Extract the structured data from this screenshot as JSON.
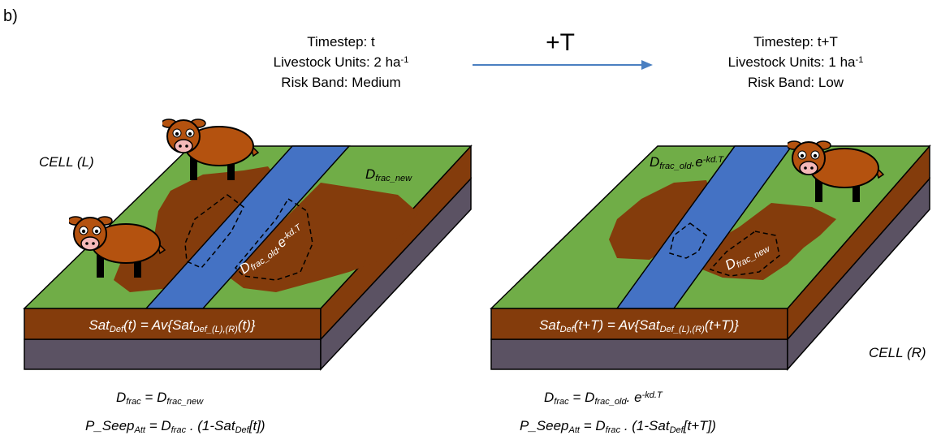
{
  "panel_label": "b)",
  "transition": "+T",
  "left": {
    "header": [
      [
        {
          "text": "Timestep: t"
        }
      ],
      [
        {
          "text": "Livestock Units: 2 ha"
        },
        {
          "sup": "-1"
        }
      ],
      [
        {
          "text": "Risk Band: Medium"
        }
      ]
    ],
    "cell": "CELL (L)",
    "top_label": [
      {
        "text": "D"
      },
      {
        "sub": "frac_new"
      }
    ],
    "patch_label": [
      {
        "text": "D"
      },
      {
        "sub": "frac_old"
      },
      {
        "text": ".e"
      },
      {
        "sup": "-kd.T"
      }
    ],
    "slab_formula": [
      {
        "text": "Sat"
      },
      {
        "sub": "Def"
      },
      {
        "text": "(t) = Av{Sat"
      },
      {
        "sub": "Def_(L),(R)"
      },
      {
        "text": "(t)}"
      }
    ],
    "formulas": [
      [
        {
          "text": "D"
        },
        {
          "sub": "frac"
        },
        {
          "text": " = D"
        },
        {
          "sub": "frac_new"
        }
      ],
      [
        {
          "text": "P_Seep"
        },
        {
          "sub": "Att"
        },
        {
          "text": " = D"
        },
        {
          "sub": "frac"
        },
        {
          "text": " . (1-Sat"
        },
        {
          "sub": "Def"
        },
        {
          "text": "[t])"
        }
      ]
    ]
  },
  "right": {
    "header": [
      [
        {
          "text": "Timestep: t+T"
        }
      ],
      [
        {
          "text": "Livestock Units: 1 ha"
        },
        {
          "sup": "-1"
        }
      ],
      [
        {
          "text": "Risk Band: Low"
        }
      ]
    ],
    "cell": "CELL (R)",
    "top_label": [
      {
        "text": "D"
      },
      {
        "sub": "frac_old"
      },
      {
        "text": ".e"
      },
      {
        "sup": "-kd.T"
      }
    ],
    "patch_label": [
      {
        "text": "D"
      },
      {
        "sub": "frac_new"
      }
    ],
    "slab_formula": [
      {
        "text": "Sat"
      },
      {
        "sub": "Def"
      },
      {
        "text": "(t+T) = Av{Sat"
      },
      {
        "sub": "Def_(L),(R)"
      },
      {
        "text": "(t+T)}"
      }
    ],
    "formulas": [
      [
        {
          "text": "D"
        },
        {
          "sub": "frac"
        },
        {
          "text": " = D"
        },
        {
          "sub": "frac_old"
        },
        {
          "text": ". e"
        },
        {
          "sup": "-kd.T"
        }
      ],
      [
        {
          "text": "P_Seep"
        },
        {
          "sub": "Att"
        },
        {
          "text": " = D"
        },
        {
          "sub": "frac"
        },
        {
          "text": " . (1-Sat"
        },
        {
          "sub": "Def"
        },
        {
          "text": "[t+T])"
        }
      ]
    ]
  }
}
